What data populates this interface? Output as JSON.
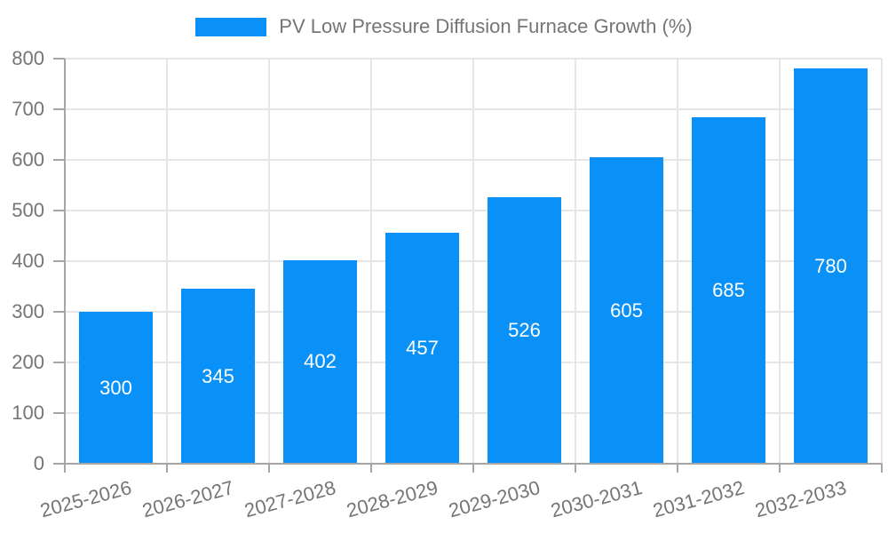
{
  "chart_data": {
    "type": "bar",
    "title": "PV Low Pressure Diffusion Furnace Growth (%)",
    "legend": {
      "entries": [
        "PV Low Pressure Diffusion Furnace Growth (%)"
      ],
      "position": "top-center"
    },
    "categories": [
      "2025-2026",
      "2026-2027",
      "2027-2028",
      "2028-2029",
      "2029-2030",
      "2030-2031",
      "2031-2032",
      "2032-2033"
    ],
    "series": [
      {
        "name": "PV Low Pressure Diffusion Furnace Growth (%)",
        "values": [
          300,
          345,
          402,
          457,
          526,
          605,
          685,
          780
        ]
      }
    ],
    "value_labels": [
      "300",
      "345",
      "402",
      "457",
      "526",
      "605",
      "685",
      "780"
    ],
    "value_label_position": "inside-center",
    "xlabel": "",
    "ylabel": "",
    "ylim": [
      0,
      800
    ],
    "ytick_step": 100,
    "yticks": [
      0,
      100,
      200,
      300,
      400,
      500,
      600,
      700,
      800
    ],
    "xtick_rotation_deg": -15,
    "grid": true,
    "colors": {
      "bar": "#0a91f7",
      "value_label": "#ffffff",
      "axis_text": "#757575",
      "gridline": "#e6e6e6",
      "axis_line": "#a6a6a6",
      "background": "#ffffff"
    }
  }
}
